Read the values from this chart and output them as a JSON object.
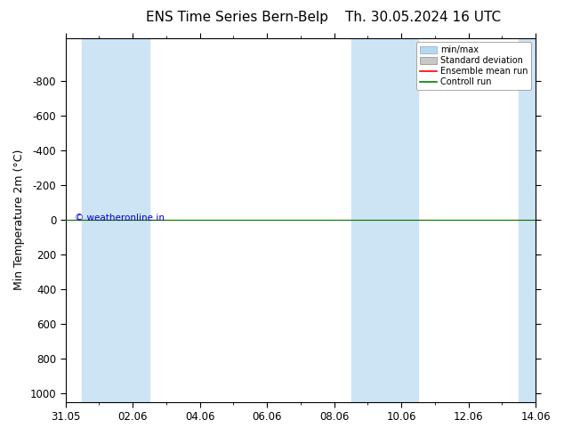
{
  "title_left": "ENS Time Series Bern-Belp",
  "title_right": "Th. 30.05.2024 16 UTC",
  "ylabel": "Min Temperature 2m (°C)",
  "x_ticks_labels": [
    "31.05",
    "02.06",
    "04.06",
    "06.06",
    "08.06",
    "10.06",
    "12.06",
    "14.06"
  ],
  "x_ticks_values": [
    0,
    2,
    4,
    6,
    8,
    10,
    12,
    14
  ],
  "ylim_top": -1050,
  "ylim_bottom": 1050,
  "yticks": [
    -800,
    -600,
    -400,
    -200,
    0,
    200,
    400,
    600,
    800,
    1000
  ],
  "bg_color": "#ffffff",
  "plot_bg_color": "#ffffff",
  "shaded_col_color": "#cde4f5",
  "shaded_ranges": [
    [
      0.5,
      2.5
    ],
    [
      8.5,
      10.5
    ],
    [
      13.5,
      14.5
    ]
  ],
  "ensemble_mean_color": "#ff0000",
  "control_run_color": "#008000",
  "min_max_color": "#b8d8f0",
  "std_dev_color": "#c8c8c8",
  "watermark_text": "© weatheronline.in",
  "watermark_color": "#0000cc",
  "legend_labels": [
    "min/max",
    "Standard deviation",
    "Ensemble mean run",
    "Controll run"
  ],
  "title_fontsize": 11,
  "tick_fontsize": 8.5,
  "ylabel_fontsize": 9
}
